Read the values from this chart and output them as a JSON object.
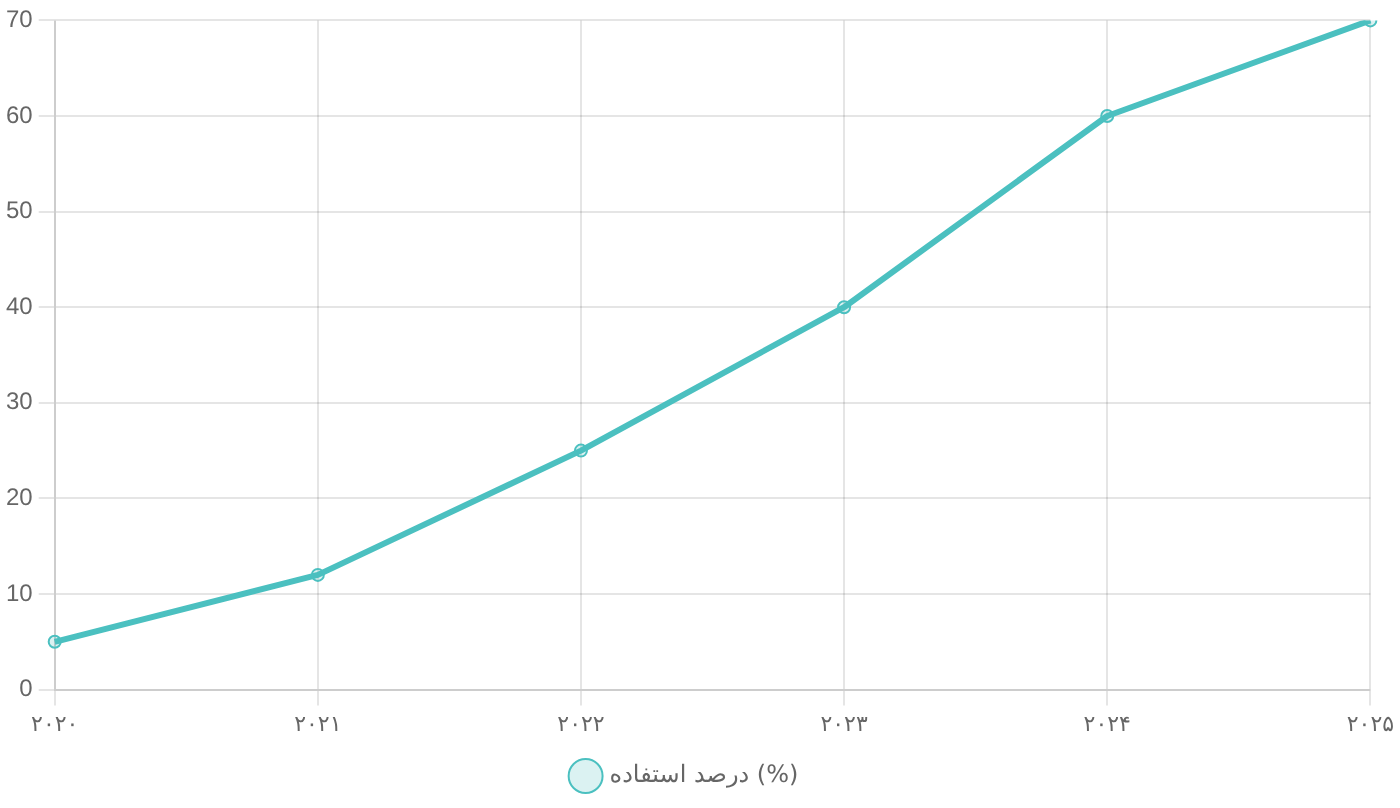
{
  "chart_data": {
    "type": "line",
    "categories": [
      "۲۰۲۰",
      "۲۰۲۱",
      "۲۰۲۲",
      "۲۰۲۳",
      "۲۰۲۴",
      "۲۰۲۵"
    ],
    "series": [
      {
        "name": "درصد استفاده (%)",
        "color": "#4bc0c0",
        "values": [
          5,
          12,
          25,
          40,
          60,
          70
        ]
      }
    ],
    "ylim": [
      0,
      70
    ],
    "yticks": [
      0,
      10,
      20,
      30,
      40,
      50,
      60,
      70
    ],
    "grid": true,
    "legend": "bottom",
    "marker": "circle",
    "line_style": "solid"
  }
}
